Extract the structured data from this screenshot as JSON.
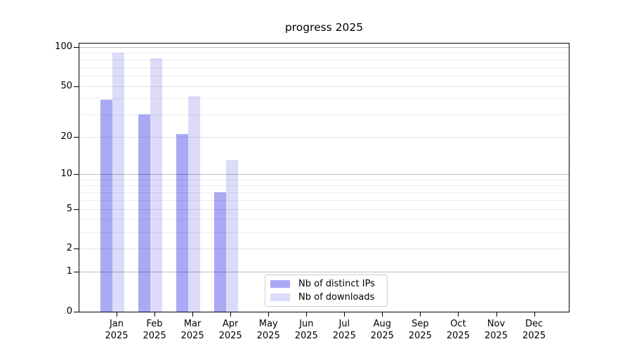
{
  "chart_data": {
    "type": "bar",
    "title": "progress 2025",
    "x_year": "2025",
    "categories": [
      "Jan",
      "Feb",
      "Mar",
      "Apr",
      "May",
      "Jun",
      "Jul",
      "Aug",
      "Sep",
      "Oct",
      "Nov",
      "Dec"
    ],
    "series": [
      {
        "name": "Nb of distinct IPs",
        "color": "#a9a9f4",
        "values": [
          39,
          30,
          21,
          7,
          null,
          null,
          null,
          null,
          null,
          null,
          null,
          null
        ]
      },
      {
        "name": "Nb of downloads",
        "color": "#dcdcfa",
        "values": [
          90,
          82,
          42,
          13,
          null,
          null,
          null,
          null,
          null,
          null,
          null,
          null
        ]
      }
    ],
    "y_scale": "log10(1+x)",
    "ylim": [
      0,
      106
    ],
    "y_ticks": [
      0,
      1,
      2,
      5,
      10,
      20,
      50,
      100
    ],
    "y_minor_gridlines": [
      3,
      4,
      6,
      7,
      8,
      9,
      30,
      40,
      60,
      70,
      80,
      90
    ],
    "grid": true,
    "legend_position": "bottom-center-inside"
  }
}
